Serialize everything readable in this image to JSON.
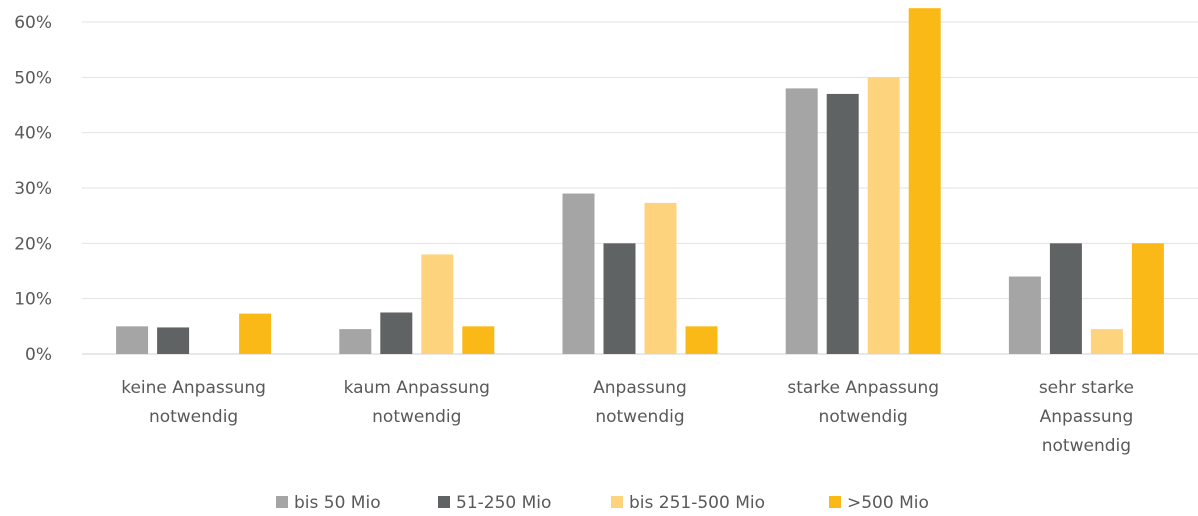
{
  "chart_data": {
    "type": "bar",
    "categories": [
      [
        "keine Anpassung",
        "notwendig"
      ],
      [
        "kaum Anpassung",
        "notwendig"
      ],
      [
        "Anpassung",
        "notwendig"
      ],
      [
        "starke Anpassung",
        "notwendig"
      ],
      [
        "sehr starke",
        "Anpassung",
        "notwendig"
      ]
    ],
    "series": [
      {
        "name": "bis 50 Mio",
        "color": "#a5a5a5",
        "values": [
          5,
          4.5,
          29,
          48,
          14
        ]
      },
      {
        "name": "51-250 Mio",
        "color": "#5f6363",
        "values": [
          4.8,
          7.5,
          20,
          47,
          20
        ]
      },
      {
        "name": "bis 251-500 Mio",
        "color": "#fdd47d",
        "values": [
          0,
          18,
          27.3,
          50,
          4.5
        ]
      },
      {
        "name": ">500 Mio",
        "color": "#fbb917",
        "values": [
          7.3,
          5,
          5,
          62.5,
          20
        ]
      }
    ],
    "yticks": [
      "0%",
      "10%",
      "20%",
      "30%",
      "40%",
      "50%",
      "60%"
    ],
    "ylim": [
      0,
      60
    ],
    "grid": true,
    "legend": "bottom",
    "title": "",
    "xlabel": "",
    "ylabel": ""
  }
}
